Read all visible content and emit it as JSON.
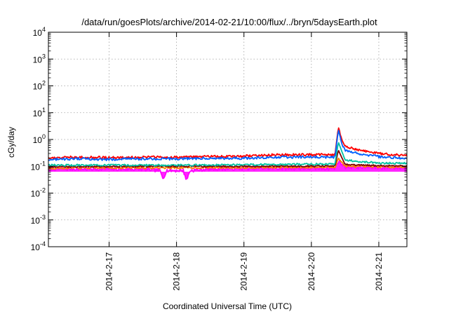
{
  "chart_data": {
    "type": "line",
    "title": "/data/run/goesPlots/archive/2014-02-21/10:00/flux/../bryn/5daysEarth.plot",
    "xlabel": "Coordinated Universal Time (UTC)",
    "ylabel": "cGy/day",
    "yscale": "log",
    "ylim": [
      0.0001,
      10000
    ],
    "xlim": [
      "2014-02-16T02:24",
      "2014-02-21T10:00"
    ],
    "x_ticks": [
      "2014-2-17",
      "2014-2-18",
      "2014-2-19",
      "2014-2-20",
      "2014-2-21"
    ],
    "y_ticks": [
      {
        "base": "10",
        "exp": "-4"
      },
      {
        "base": "10",
        "exp": "-3"
      },
      {
        "base": "10",
        "exp": "-2"
      },
      {
        "base": "10",
        "exp": "-1"
      },
      {
        "base": "10",
        "exp": "0"
      },
      {
        "base": "10",
        "exp": "1"
      },
      {
        "base": "10",
        "exp": "2"
      },
      {
        "base": "10",
        "exp": "3"
      },
      {
        "base": "10",
        "exp": "4"
      }
    ],
    "grid": true,
    "legend": "none",
    "series": [
      {
        "color": "#ff00ff",
        "fill_below": true,
        "points": [
          [
            "2014-02-16T02:24",
            0.08
          ],
          [
            "2014-02-16T12:00",
            0.08
          ],
          [
            "2014-02-17T00:00",
            0.08
          ],
          [
            "2014-02-17T12:00",
            0.078
          ],
          [
            "2014-02-17T18:00",
            0.07
          ],
          [
            "2014-02-17T19:12",
            0.035
          ],
          [
            "2014-02-17T20:24",
            0.07
          ],
          [
            "2014-02-18T00:00",
            0.07
          ],
          [
            "2014-02-18T02:24",
            0.07
          ],
          [
            "2014-02-18T03:36",
            0.03
          ],
          [
            "2014-02-18T04:48",
            0.07
          ],
          [
            "2014-02-18T12:00",
            0.08
          ],
          [
            "2014-02-19T00:00",
            0.085
          ],
          [
            "2014-02-19T12:00",
            0.085
          ],
          [
            "2014-02-20T00:00",
            0.085
          ],
          [
            "2014-02-20T08:24",
            0.085
          ],
          [
            "2014-02-20T09:36",
            0.16
          ],
          [
            "2014-02-20T12:00",
            0.095
          ],
          [
            "2014-02-21T00:00",
            0.09
          ],
          [
            "2014-02-21T10:00",
            0.09
          ]
        ]
      },
      {
        "color": "#ff8000",
        "points": [
          [
            "2014-02-16T02:24",
            0.085
          ],
          [
            "2014-02-17T00:00",
            0.088
          ],
          [
            "2014-02-18T00:00",
            0.088
          ],
          [
            "2014-02-19T00:00",
            0.09
          ],
          [
            "2014-02-20T00:00",
            0.092
          ],
          [
            "2014-02-20T08:24",
            0.092
          ],
          [
            "2014-02-20T09:36",
            0.2
          ],
          [
            "2014-02-20T12:00",
            0.1
          ],
          [
            "2014-02-21T00:00",
            0.095
          ],
          [
            "2014-02-21T10:00",
            0.095
          ]
        ]
      },
      {
        "color": "#800000",
        "points": [
          [
            "2014-02-16T02:24",
            0.095
          ],
          [
            "2014-02-17T00:00",
            0.1
          ],
          [
            "2014-02-18T00:00",
            0.1
          ],
          [
            "2014-02-19T00:00",
            0.1
          ],
          [
            "2014-02-20T00:00",
            0.102
          ],
          [
            "2014-02-20T08:24",
            0.102
          ],
          [
            "2014-02-20T09:36",
            0.4
          ],
          [
            "2014-02-20T12:00",
            0.115
          ],
          [
            "2014-02-21T00:00",
            0.105
          ],
          [
            "2014-02-21T10:00",
            0.105
          ]
        ]
      },
      {
        "color": "#00c0a0",
        "points": [
          [
            "2014-02-16T02:24",
            0.11
          ],
          [
            "2014-02-17T00:00",
            0.11
          ],
          [
            "2014-02-18T00:00",
            0.11
          ],
          [
            "2014-02-19T00:00",
            0.115
          ],
          [
            "2014-02-20T00:00",
            0.12
          ],
          [
            "2014-02-20T08:24",
            0.12
          ],
          [
            "2014-02-20T09:36",
            0.8
          ],
          [
            "2014-02-20T12:00",
            0.17
          ],
          [
            "2014-02-21T00:00",
            0.13
          ],
          [
            "2014-02-21T10:00",
            0.13
          ]
        ]
      },
      {
        "color": "#ff0000",
        "points": [
          [
            "2014-02-16T02:24",
            0.2
          ],
          [
            "2014-02-16T12:00",
            0.22
          ],
          [
            "2014-02-17T00:00",
            0.21
          ],
          [
            "2014-02-17T12:00",
            0.22
          ],
          [
            "2014-02-18T00:00",
            0.22
          ],
          [
            "2014-02-18T12:00",
            0.23
          ],
          [
            "2014-02-19T00:00",
            0.24
          ],
          [
            "2014-02-19T12:00",
            0.27
          ],
          [
            "2014-02-20T00:00",
            0.27
          ],
          [
            "2014-02-20T08:24",
            0.27
          ],
          [
            "2014-02-20T09:36",
            2.8
          ],
          [
            "2014-02-20T10:48",
            1.0
          ],
          [
            "2014-02-20T12:00",
            0.55
          ],
          [
            "2014-02-20T18:00",
            0.38
          ],
          [
            "2014-02-21T00:00",
            0.3
          ],
          [
            "2014-02-21T06:00",
            0.27
          ],
          [
            "2014-02-21T10:00",
            0.25
          ]
        ]
      },
      {
        "color": "#0060ff",
        "points": [
          [
            "2014-02-16T02:24",
            0.18
          ],
          [
            "2014-02-16T12:00",
            0.19
          ],
          [
            "2014-02-17T00:00",
            0.18
          ],
          [
            "2014-02-17T12:00",
            0.19
          ],
          [
            "2014-02-18T00:00",
            0.19
          ],
          [
            "2014-02-18T12:00",
            0.2
          ],
          [
            "2014-02-19T00:00",
            0.2
          ],
          [
            "2014-02-19T12:00",
            0.22
          ],
          [
            "2014-02-20T00:00",
            0.22
          ],
          [
            "2014-02-20T08:24",
            0.22
          ],
          [
            "2014-02-20T09:36",
            2.2
          ],
          [
            "2014-02-20T10:48",
            0.7
          ],
          [
            "2014-02-20T12:00",
            0.38
          ],
          [
            "2014-02-20T18:00",
            0.28
          ],
          [
            "2014-02-21T00:00",
            0.23
          ],
          [
            "2014-02-21T06:00",
            0.21
          ],
          [
            "2014-02-21T10:00",
            0.2
          ]
        ]
      }
    ]
  }
}
